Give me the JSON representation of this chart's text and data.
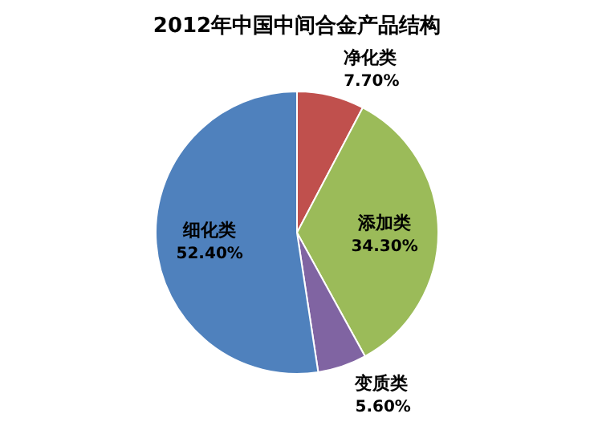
{
  "chart_data": {
    "type": "pie",
    "title": "2012年中国中间合金产品结构",
    "categories": [
      "净化类",
      "添加类",
      "变质类",
      "细化类"
    ],
    "values": [
      7.7,
      34.3,
      5.6,
      52.4
    ],
    "value_labels": [
      "7.70%",
      "34.30%",
      "5.60%",
      "52.40%"
    ],
    "colors": [
      "#c0504d",
      "#9bbb59",
      "#8064a2",
      "#4f81bd"
    ],
    "legend": false
  }
}
